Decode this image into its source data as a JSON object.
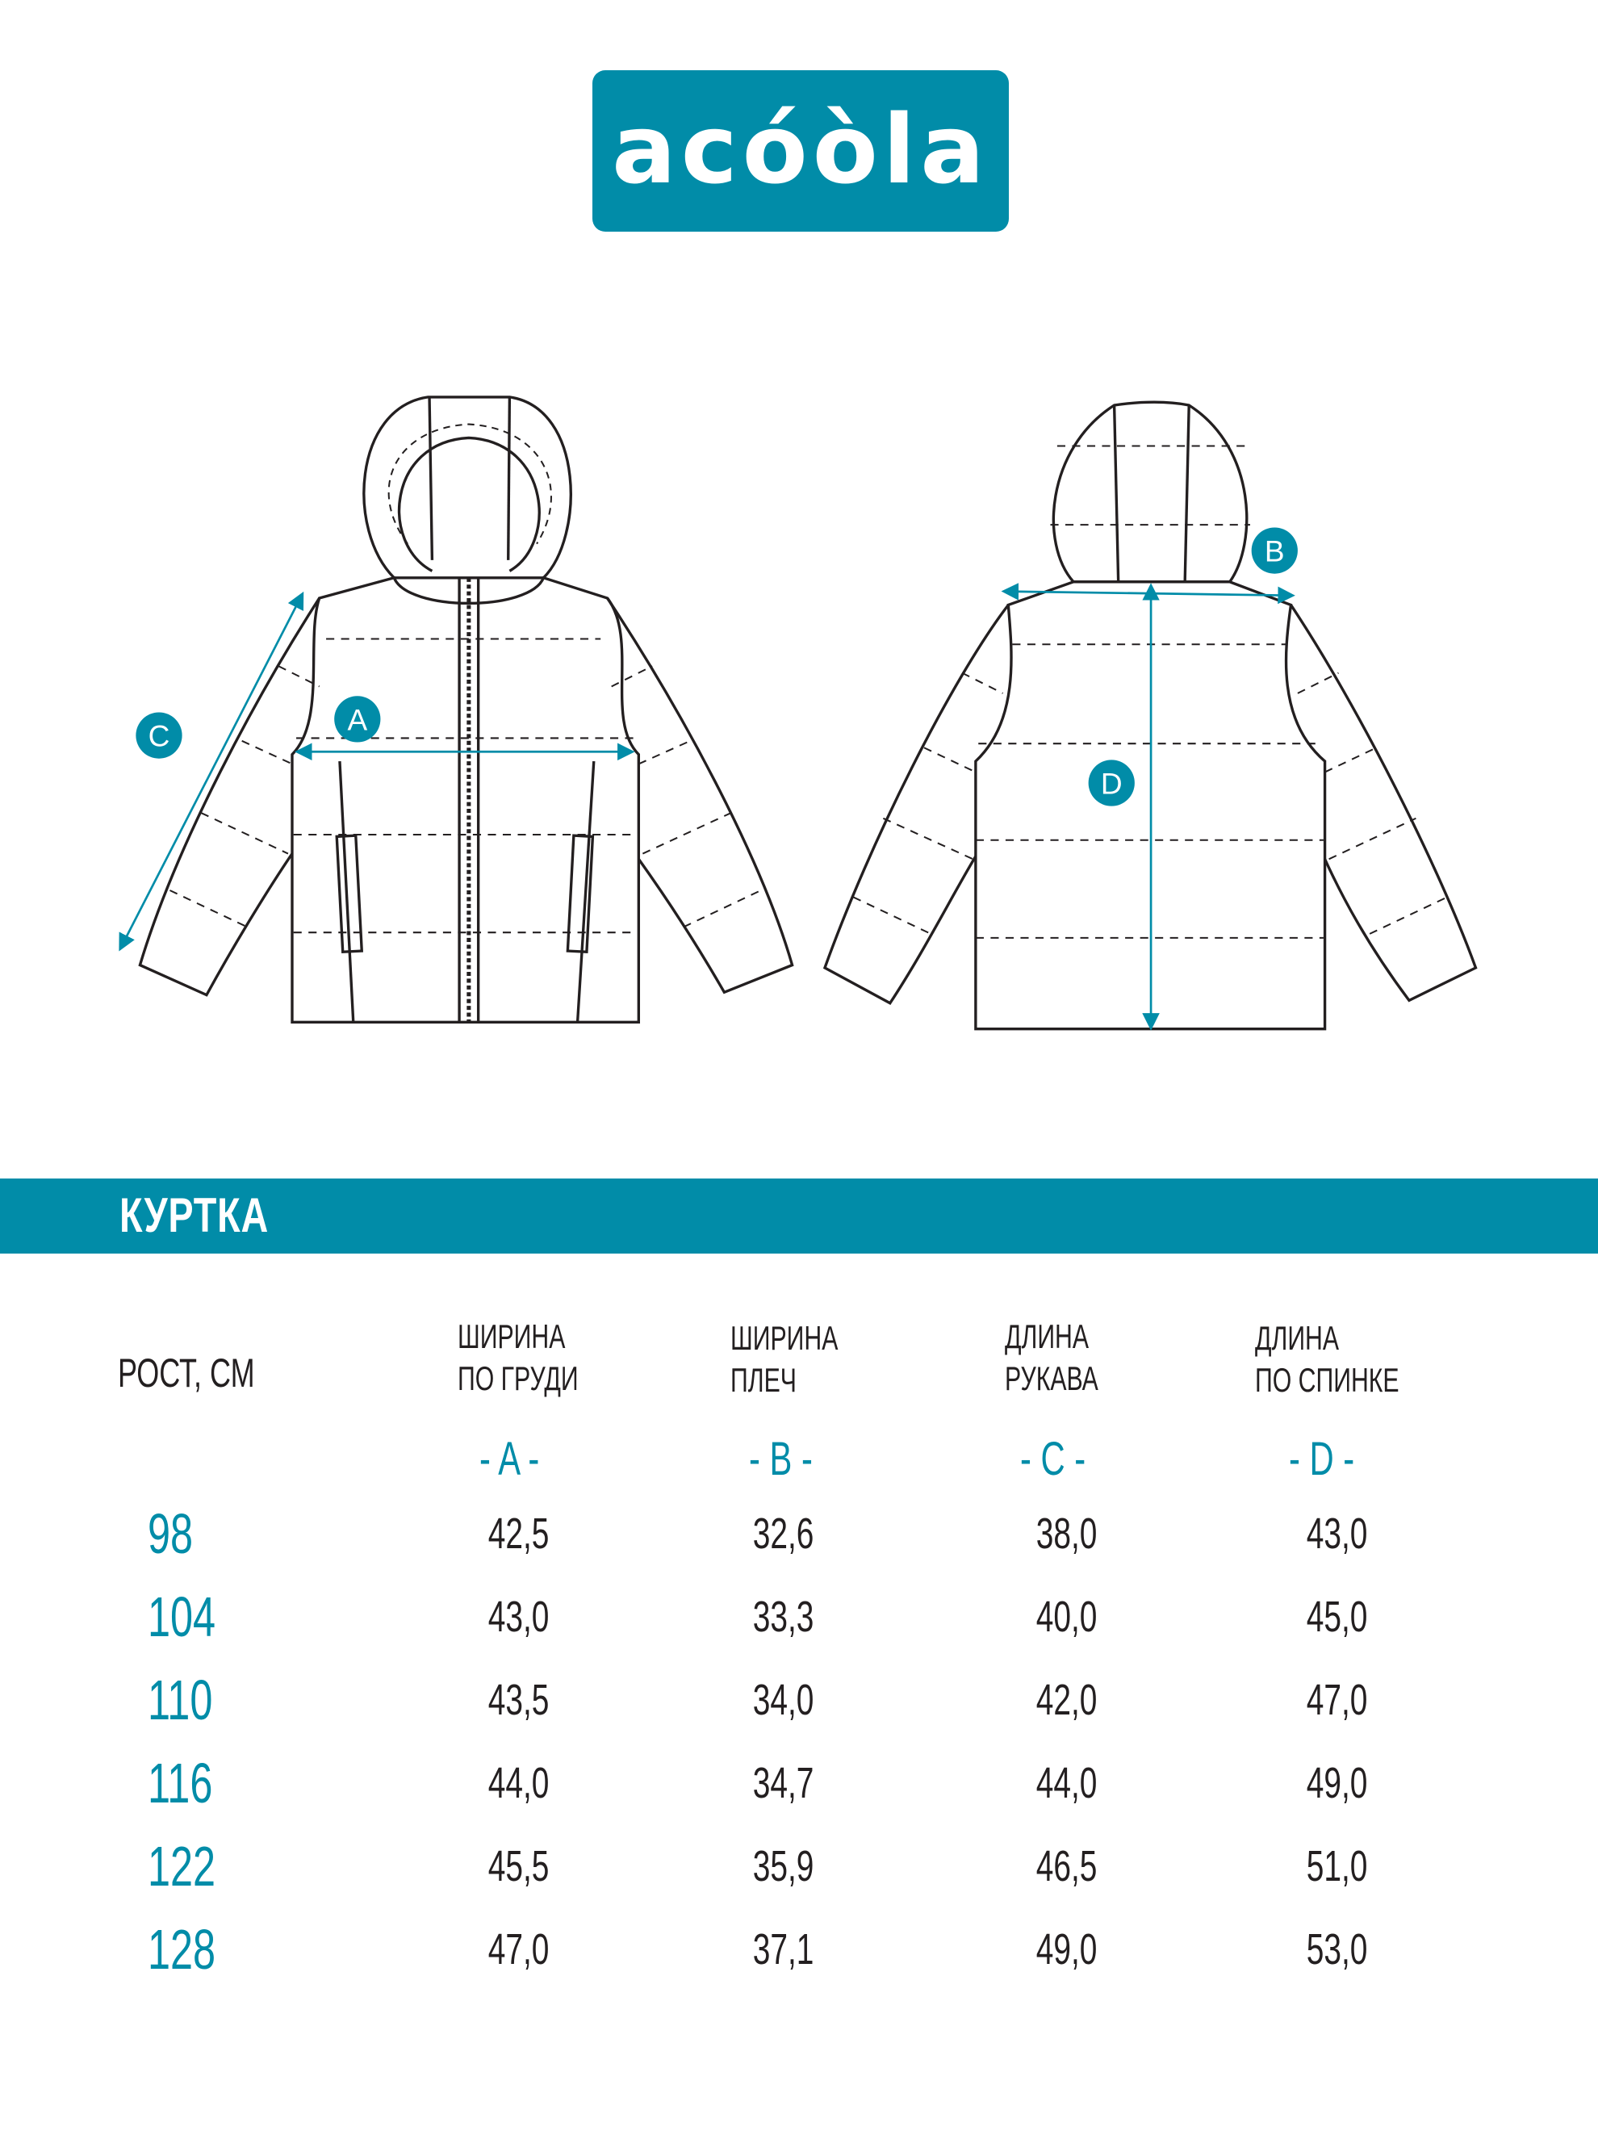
{
  "brand": {
    "logo_text": "acóòla",
    "color": "#018ca8"
  },
  "diagram": {
    "labels": [
      "A",
      "B",
      "C",
      "D"
    ]
  },
  "section_title": "КУРТКА",
  "table": {
    "row_header": "РОСТ, СМ",
    "columns": [
      {
        "line1": "ШИРИНА",
        "line2": "ПО ГРУДИ",
        "letter": "- A -"
      },
      {
        "line1": "ШИРИНА",
        "line2": "ПЛЕЧ",
        "letter": "- B -"
      },
      {
        "line1": "ДЛИНА",
        "line2": "РУКАВА",
        "letter": "- C -"
      },
      {
        "line1": "ДЛИНА",
        "line2": "ПО СПИНКЕ",
        "letter": "- D -"
      }
    ],
    "rows": [
      {
        "size": "98",
        "values": [
          "42,5",
          "32,6",
          "38,0",
          "43,0"
        ]
      },
      {
        "size": "104",
        "values": [
          "43,0",
          "33,3",
          "40,0",
          "45,0"
        ]
      },
      {
        "size": "110",
        "values": [
          "43,5",
          "34,0",
          "42,0",
          "47,0"
        ]
      },
      {
        "size": "116",
        "values": [
          "44,0",
          "34,7",
          "44,0",
          "49,0"
        ]
      },
      {
        "size": "122",
        "values": [
          "45,5",
          "35,9",
          "46,5",
          "51,0"
        ]
      },
      {
        "size": "128",
        "values": [
          "47,0",
          "37,1",
          "49,0",
          "53,0"
        ]
      }
    ]
  }
}
